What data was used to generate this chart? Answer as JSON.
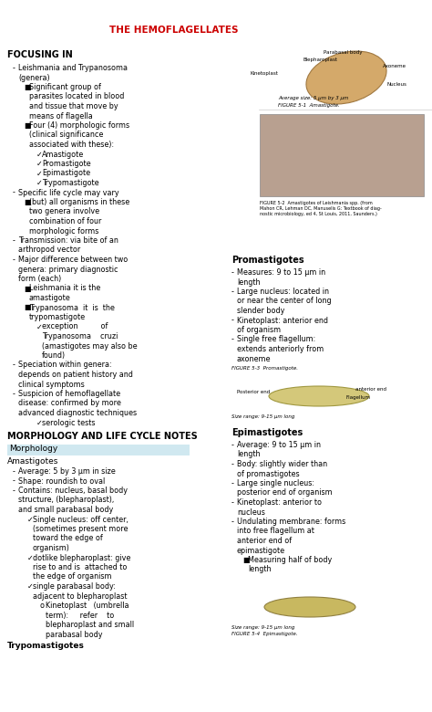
{
  "title": "THE HEMOFLAGELLATES",
  "title_color": "#cc0000",
  "bg_color": "#ffffff",
  "focusing_in_header": "FOCUSING IN",
  "morphology_header": "MORPHOLOGY AND LIFE CYCLE NOTES",
  "morphology_tab": "Morphology",
  "left_col": [
    {
      "type": "dash",
      "text": "Leishmania and Trypanosoma (genera)"
    },
    {
      "type": "bullet",
      "text": "Significant group of parasites located in blood and tissue that move by means of flagella"
    },
    {
      "type": "bullet",
      "text": "Four (4) morphologic forms (clinical significance associated with these):"
    },
    {
      "type": "check",
      "text": "Amastigote"
    },
    {
      "type": "check",
      "text": "Promastigote"
    },
    {
      "type": "check",
      "text": "Epimastigote"
    },
    {
      "type": "check",
      "text": "Trypomastigote"
    },
    {
      "type": "dash",
      "text": "Specific life cycle may vary"
    },
    {
      "type": "bullet",
      "text": "(but) all organisms in these two genera involve combination of four morphologic forms"
    },
    {
      "type": "dash",
      "text": "Transmission: via bite of an arthropod vector"
    },
    {
      "type": "dash",
      "text": "Major difference between two genera: primary diagnostic form (each)"
    },
    {
      "type": "bullet",
      "text": "Leishmania it is the amastigote"
    },
    {
      "type": "bullet",
      "text": "Trypanosoma  it  is  the trypomastigote"
    },
    {
      "type": "check",
      "text": "exception          of Trypanosoma    cruzi (amastigotes may also be found)"
    },
    {
      "type": "dash",
      "text": "Speciation within genera: depends on patient history and clinical symptoms"
    },
    {
      "type": "dash",
      "text": "Suspicion of hemoflagellate disease: confirmed by more advanced diagnostic techniques"
    },
    {
      "type": "check",
      "text": "serologic tests"
    }
  ],
  "amastigotes_header": "Amastigotes",
  "amastigotes": [
    {
      "type": "dash",
      "text": "Average: 5 by 3 μm in size"
    },
    {
      "type": "dash",
      "text": "Shape: roundish to oval"
    },
    {
      "type": "dash",
      "text": "Contains: nucleus, basal body structure, (blepharoplast), and small parabasal body"
    },
    {
      "type": "check",
      "text": "Single nucleus: off center, (sometimes present more toward the edge of organism)"
    },
    {
      "type": "check",
      "text": "dotlike blepharoplast: give rise to and is  attached to  the edge of organism"
    },
    {
      "type": "check",
      "text": "single parabasal body: adjacent to blepharoplast"
    },
    {
      "type": "circle",
      "text": "Kinetoplast   (umbrella term):     refer    to blepharoplast and small parabasal body"
    }
  ],
  "promastigotes_header": "Promastigotes",
  "promastigotes": [
    {
      "type": "dash",
      "text": "Measures: 9 to 15 μm in length"
    },
    {
      "type": "dash",
      "text": "Large nucleus: located in or near the center of long slender body"
    },
    {
      "type": "dash",
      "text": "Kinetoplast: anterior end of organism"
    },
    {
      "type": "dash",
      "text": "Single free flagellum: extends anteriorly from axoneme"
    }
  ],
  "epimastigotes_header": "Epimastigotes",
  "epimastigotes": [
    {
      "type": "dash",
      "text": "Average: 9 to 15 μm in length"
    },
    {
      "type": "dash",
      "text": "Body: slightly wider than of promastigotes"
    },
    {
      "type": "dash",
      "text": "Large single nucleus: posterior end of organism"
    },
    {
      "type": "dash",
      "text": "Kinetoplast: anterior to nucleus"
    },
    {
      "type": "dash",
      "text": "Undulating membrane: forms into free flagellum at anterior end of epimastigote"
    },
    {
      "type": "bullet",
      "text": "Measuring half of body length"
    }
  ],
  "trypomastigotes_header": "Trypomastigotes"
}
